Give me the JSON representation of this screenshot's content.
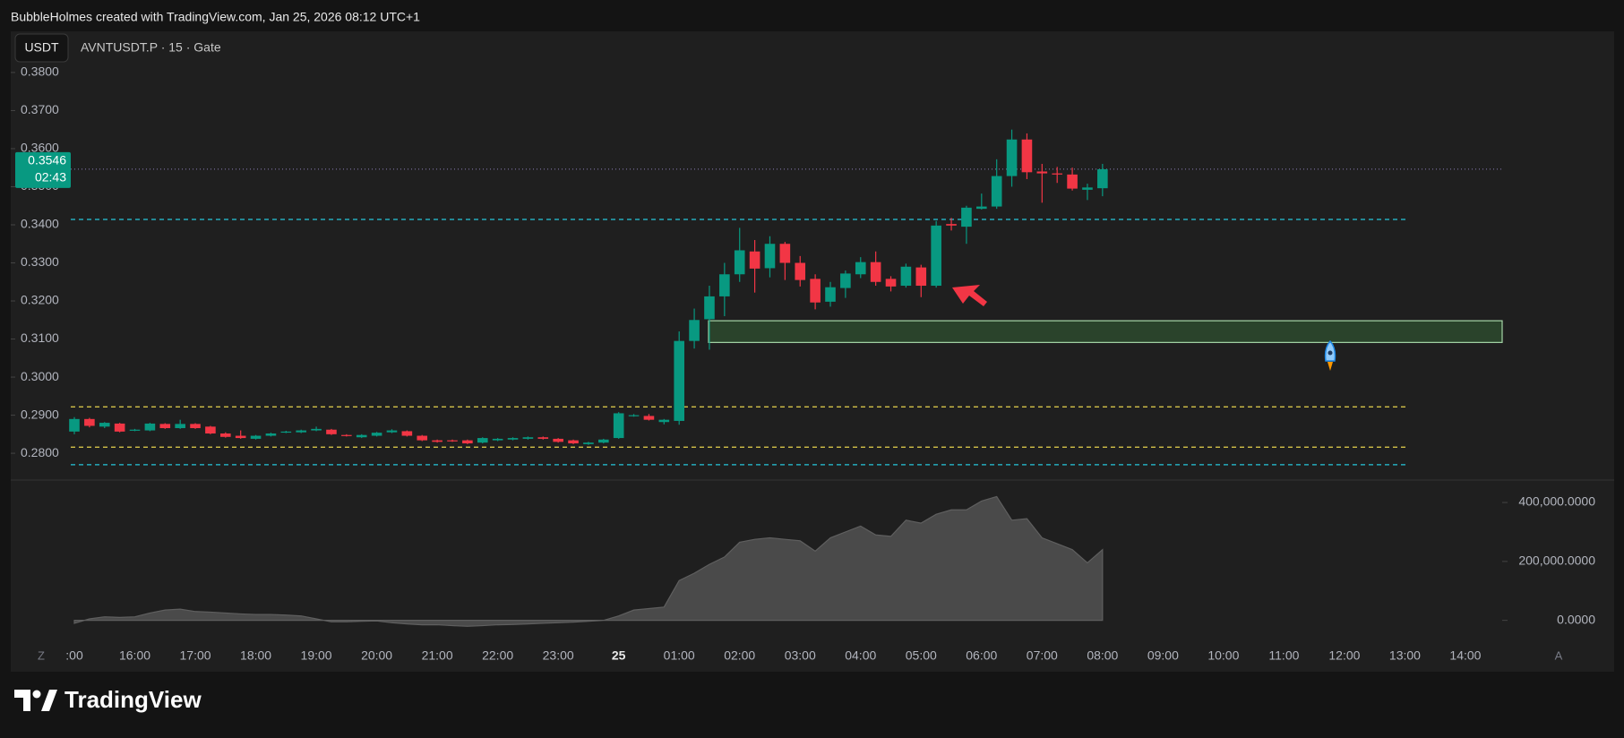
{
  "header": {
    "text": "BubbleHolmes created with TradingView.com, Jan 25, 2026 08:12 UTC+1"
  },
  "toolbar": {
    "currency": "USDT",
    "symbol": "AVNTUSDT.P · 15 · Gate"
  },
  "axis_buttons": {
    "left": "Z",
    "right": "A"
  },
  "footer": {
    "brand": "TradingView"
  },
  "chart_data": {
    "type": "candlestick",
    "categories": [
      ":00",
      null,
      null,
      null,
      "16:00",
      null,
      null,
      null,
      "17:00",
      null,
      null,
      null,
      "18:00",
      null,
      null,
      null,
      "19:00",
      null,
      null,
      null,
      "20:00",
      null,
      null,
      null,
      "21:00",
      null,
      null,
      null,
      "22:00",
      null,
      null,
      null,
      "23:00",
      null,
      null,
      null,
      "25",
      null,
      null,
      null,
      "01:00",
      null,
      null,
      null,
      "02:00",
      null,
      null,
      null,
      "03:00",
      null,
      null,
      null,
      "04:00",
      null,
      null,
      null,
      "05:00",
      null,
      null,
      null,
      "06:00",
      null,
      null,
      null,
      "07:00",
      null,
      null,
      null,
      "08:00",
      null,
      null,
      null,
      "09:00",
      null,
      null,
      null,
      "10:00",
      null,
      null,
      null,
      "11:00",
      null,
      null,
      null,
      "12:00",
      null,
      null,
      null,
      "13:00",
      null,
      null,
      null,
      "14:00"
    ],
    "open": [
      0.2857,
      0.289,
      0.287,
      0.2878,
      0.286,
      0.286,
      0.2877,
      0.2866,
      0.2877,
      0.287,
      0.2852,
      0.2846,
      0.2838,
      0.2846,
      0.2855,
      0.2855,
      0.286,
      0.2862,
      0.2848,
      0.2842,
      0.2846,
      0.2855,
      0.2858,
      0.2846,
      0.2834,
      0.2834,
      0.2834,
      0.2828,
      0.2834,
      0.2836,
      0.2838,
      0.2842,
      0.2838,
      0.2834,
      0.2824,
      0.2828,
      0.284,
      0.2898,
      0.2898,
      0.2882,
      0.2885,
      0.3095,
      0.3152,
      0.3212,
      0.327,
      0.333,
      0.3286,
      0.335,
      0.33,
      0.3258,
      0.3198,
      0.3234,
      0.327,
      0.3302,
      0.3258,
      0.324,
      0.3288,
      0.324,
      0.3402,
      0.3395,
      0.3442,
      0.3448,
      0.3528,
      0.3624,
      0.354,
      0.3535,
      0.3532,
      0.3492,
      0.3496,
      null,
      null,
      null,
      null,
      null,
      null,
      null,
      null,
      null,
      null,
      null,
      null,
      null,
      null,
      null,
      null,
      null,
      null,
      null,
      null,
      null,
      null,
      null,
      null
    ],
    "high": [
      0.2895,
      0.2893,
      0.2882,
      0.288,
      0.2864,
      0.288,
      0.2879,
      0.2888,
      0.2879,
      0.2872,
      0.2855,
      0.286,
      0.2848,
      0.2854,
      0.2859,
      0.2862,
      0.287,
      0.2864,
      0.285,
      0.285,
      0.2856,
      0.2863,
      0.286,
      0.2848,
      0.2836,
      0.2836,
      0.2836,
      0.2842,
      0.284,
      0.2842,
      0.2844,
      0.2844,
      0.284,
      0.2836,
      0.283,
      0.2838,
      0.2908,
      0.2903,
      0.2903,
      0.289,
      0.312,
      0.318,
      0.324,
      0.33,
      0.3392,
      0.336,
      0.337,
      0.3355,
      0.3318,
      0.327,
      0.325,
      0.328,
      0.3315,
      0.333,
      0.3265,
      0.3298,
      0.3295,
      0.341,
      0.3418,
      0.345,
      0.3482,
      0.3572,
      0.365,
      0.364,
      0.356,
      0.3552,
      0.355,
      0.3508,
      0.356,
      null,
      null,
      null,
      null,
      null,
      null,
      null,
      null,
      null,
      null,
      null,
      null,
      null,
      null,
      null,
      null,
      null,
      null,
      null,
      null,
      null,
      null,
      null,
      null
    ],
    "low": [
      0.285,
      0.2868,
      0.2866,
      0.2855,
      0.2858,
      0.2858,
      0.2864,
      0.2864,
      0.2864,
      0.285,
      0.2841,
      0.2838,
      0.2836,
      0.2844,
      0.2853,
      0.2853,
      0.2858,
      0.2848,
      0.2844,
      0.284,
      0.2844,
      0.2853,
      0.2844,
      0.2832,
      0.2828,
      0.283,
      0.2824,
      0.2826,
      0.2832,
      0.2834,
      0.2836,
      0.2836,
      0.2828,
      0.2824,
      0.2822,
      0.2826,
      0.2838,
      0.2896,
      0.2886,
      0.2876,
      0.2875,
      0.3075,
      0.3072,
      0.316,
      0.325,
      0.3222,
      0.3262,
      0.3255,
      0.3238,
      0.3178,
      0.3185,
      0.3208,
      0.326,
      0.324,
      0.3225,
      0.3235,
      0.321,
      0.3235,
      0.3385,
      0.335,
      0.344,
      0.3442,
      0.35,
      0.352,
      0.3458,
      0.351,
      0.349,
      0.3465,
      0.3475,
      null,
      null,
      null,
      null,
      null,
      null,
      null,
      null,
      null,
      null,
      null,
      null,
      null,
      null,
      null,
      null,
      null,
      null,
      null,
      null,
      null,
      null,
      null,
      null
    ],
    "close": [
      0.289,
      0.2872,
      0.288,
      0.2857,
      0.2862,
      0.2878,
      0.2866,
      0.2877,
      0.2866,
      0.2852,
      0.2843,
      0.284,
      0.2846,
      0.2852,
      0.2857,
      0.286,
      0.2864,
      0.285,
      0.2846,
      0.2848,
      0.2854,
      0.286,
      0.2846,
      0.2834,
      0.283,
      0.2832,
      0.2826,
      0.284,
      0.2838,
      0.284,
      0.2842,
      0.2838,
      0.283,
      0.2826,
      0.2828,
      0.2836,
      0.2905,
      0.29,
      0.2888,
      0.2888,
      0.3095,
      0.315,
      0.3212,
      0.327,
      0.3333,
      0.3285,
      0.335,
      0.33,
      0.3255,
      0.3196,
      0.3236,
      0.3272,
      0.3302,
      0.325,
      0.3238,
      0.329,
      0.324,
      0.3398,
      0.3398,
      0.3445,
      0.3448,
      0.3528,
      0.3624,
      0.3538,
      0.3535,
      0.3532,
      0.3495,
      0.3498,
      0.3546,
      null,
      null,
      null,
      null,
      null,
      null,
      null,
      null,
      null,
      null,
      null,
      null,
      null,
      null,
      null,
      null,
      null,
      null,
      null,
      null,
      null,
      null,
      null,
      null
    ],
    "up_color": "#089981",
    "down_color": "#f23645",
    "countdown": "02:43",
    "ylim": [
      0.2732,
      0.3908
    ],
    "yticks": [
      {
        "value": 0.28,
        "label": "0.2800"
      },
      {
        "value": 0.29,
        "label": "0.2900"
      },
      {
        "value": 0.3,
        "label": "0.3000"
      },
      {
        "value": 0.31,
        "label": "0.3100"
      },
      {
        "value": 0.32,
        "label": "0.3200"
      },
      {
        "value": 0.33,
        "label": "0.3300"
      },
      {
        "value": 0.34,
        "label": "0.3400"
      },
      {
        "value": 0.35,
        "label": "0.3500"
      },
      {
        "value": 0.36,
        "label": "0.3600"
      },
      {
        "value": 0.37,
        "label": "0.3700"
      },
      {
        "value": 0.38,
        "label": "0.3800"
      }
    ],
    "levels": [
      {
        "value": 0.3414,
        "color": "#26c6da"
      },
      {
        "value": 0.2922,
        "color": "#e8d44d"
      },
      {
        "value": 0.2816,
        "color": "#e8d44d"
      },
      {
        "value": 0.277,
        "color": "#26c6da"
      }
    ],
    "zone": {
      "top": 0.3148,
      "bottom": 0.3091,
      "color": "#4caf50"
    },
    "volume": {
      "values": [
        -10000,
        5000,
        12000,
        10000,
        12000,
        25000,
        35000,
        38000,
        30000,
        28000,
        25000,
        22000,
        20000,
        20000,
        18000,
        15000,
        5000,
        -5000,
        -5000,
        -3000,
        -2000,
        -8000,
        -12000,
        -15000,
        -15000,
        -18000,
        -20000,
        -18000,
        -15000,
        -14000,
        -12000,
        -10000,
        -8000,
        -6000,
        -3000,
        0,
        15000,
        35000,
        40000,
        45000,
        135000,
        160000,
        190000,
        215000,
        265000,
        275000,
        280000,
        275000,
        270000,
        235000,
        280000,
        300000,
        320000,
        290000,
        285000,
        340000,
        330000,
        360000,
        375000,
        375000,
        405000,
        420000,
        340000,
        345000,
        280000,
        260000,
        240000,
        195000,
        240000,
        null,
        null,
        null,
        null,
        null,
        null,
        null,
        null,
        null,
        null,
        null,
        null,
        null,
        null,
        null,
        null,
        null,
        null,
        null,
        null,
        null,
        null,
        null,
        null
      ],
      "color": "#4a4a4a",
      "ylim": [
        -74000,
        467000
      ],
      "yticks": [
        {
          "value": 0,
          "label": "0.0000"
        },
        {
          "value": 200000,
          "label": "200,000.0000"
        },
        {
          "value": 400000,
          "label": "400,000.0000"
        }
      ]
    }
  }
}
